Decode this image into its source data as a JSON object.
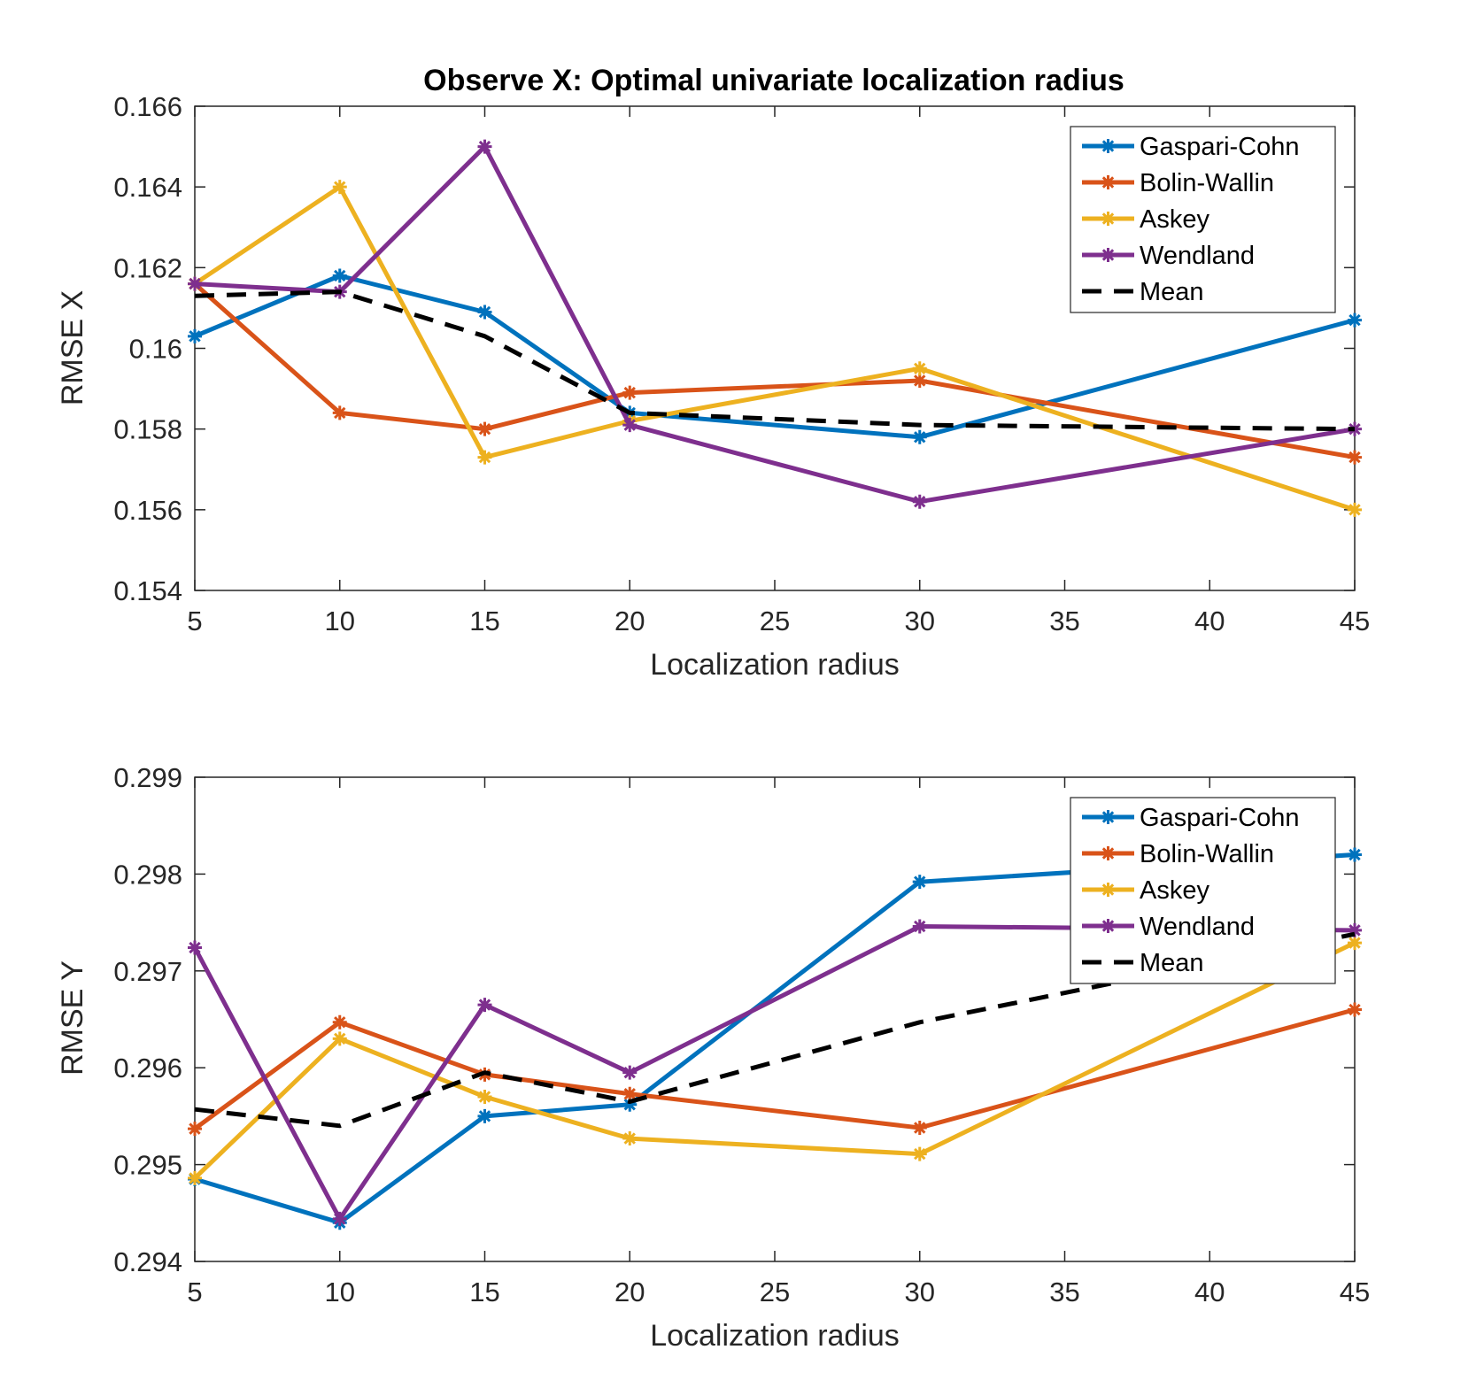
{
  "chart_data": [
    {
      "type": "line",
      "title": "Observe X: Optimal univariate localization radius",
      "xlabel": "Localization radius",
      "ylabel": "RMSE X",
      "xlim": [
        5,
        45
      ],
      "ylim": [
        0.154,
        0.166
      ],
      "xticks": [
        5,
        10,
        15,
        20,
        25,
        30,
        35,
        40,
        45
      ],
      "yticks": [
        0.154,
        0.156,
        0.158,
        0.16,
        0.162,
        0.164,
        0.166
      ],
      "xtick_labels": [
        "5",
        "10",
        "15",
        "20",
        "25",
        "30",
        "35",
        "40",
        "45"
      ],
      "ytick_labels": [
        "0.154",
        "0.156",
        "0.158",
        "0.16",
        "0.162",
        "0.164",
        "0.166"
      ],
      "legend_position": "top-right",
      "x": [
        5,
        10,
        15,
        20,
        30,
        45
      ],
      "series": [
        {
          "name": "Gaspari-Cohn",
          "color": "#0072BD",
          "style": "solid-star",
          "values": [
            0.1603,
            0.1618,
            0.1609,
            0.1584,
            0.1578,
            0.1607
          ]
        },
        {
          "name": "Bolin-Wallin",
          "color": "#D95319",
          "style": "solid-star",
          "values": [
            0.1616,
            0.1584,
            0.158,
            0.1589,
            0.1592,
            0.1573
          ]
        },
        {
          "name": "Askey",
          "color": "#EDB120",
          "style": "solid-star",
          "values": [
            0.1616,
            0.164,
            0.1573,
            0.1582,
            0.1595,
            0.156
          ]
        },
        {
          "name": "Wendland",
          "color": "#7E2F8E",
          "style": "solid-star",
          "values": [
            0.1616,
            0.1614,
            0.165,
            0.1581,
            0.1562,
            0.158
          ]
        },
        {
          "name": "Mean",
          "color": "#000000",
          "style": "dashed",
          "values": [
            0.1613,
            0.1614,
            0.1603,
            0.1584,
            0.1581,
            0.158
          ]
        }
      ]
    },
    {
      "type": "line",
      "title": "",
      "xlabel": "Localization radius",
      "ylabel": "RMSE Y",
      "xlim": [
        5,
        45
      ],
      "ylim": [
        0.294,
        0.299
      ],
      "xticks": [
        5,
        10,
        15,
        20,
        25,
        30,
        35,
        40,
        45
      ],
      "yticks": [
        0.294,
        0.295,
        0.296,
        0.297,
        0.298,
        0.299
      ],
      "xtick_labels": [
        "5",
        "10",
        "15",
        "20",
        "25",
        "30",
        "35",
        "40",
        "45"
      ],
      "ytick_labels": [
        "0.294",
        "0.295",
        "0.296",
        "0.297",
        "0.298",
        "0.299"
      ],
      "legend_position": "top-right",
      "x": [
        5,
        10,
        15,
        20,
        30,
        45
      ],
      "series": [
        {
          "name": "Gaspari-Cohn",
          "color": "#0072BD",
          "style": "solid-star",
          "values": [
            0.29485,
            0.2944,
            0.2955,
            0.29562,
            0.29792,
            0.2982
          ]
        },
        {
          "name": "Bolin-Wallin",
          "color": "#D95319",
          "style": "solid-star",
          "values": [
            0.29537,
            0.29647,
            0.29593,
            0.29573,
            0.29538,
            0.2966
          ]
        },
        {
          "name": "Askey",
          "color": "#EDB120",
          "style": "solid-star",
          "values": [
            0.29486,
            0.2963,
            0.2957,
            0.29527,
            0.29511,
            0.29729
          ]
        },
        {
          "name": "Wendland",
          "color": "#7E2F8E",
          "style": "solid-star",
          "values": [
            0.29724,
            0.29444,
            0.29665,
            0.29595,
            0.29746,
            0.29742
          ]
        },
        {
          "name": "Mean",
          "color": "#000000",
          "style": "dashed",
          "values": [
            0.29557,
            0.2954,
            0.29595,
            0.29565,
            0.29647,
            0.29738
          ]
        }
      ]
    }
  ]
}
